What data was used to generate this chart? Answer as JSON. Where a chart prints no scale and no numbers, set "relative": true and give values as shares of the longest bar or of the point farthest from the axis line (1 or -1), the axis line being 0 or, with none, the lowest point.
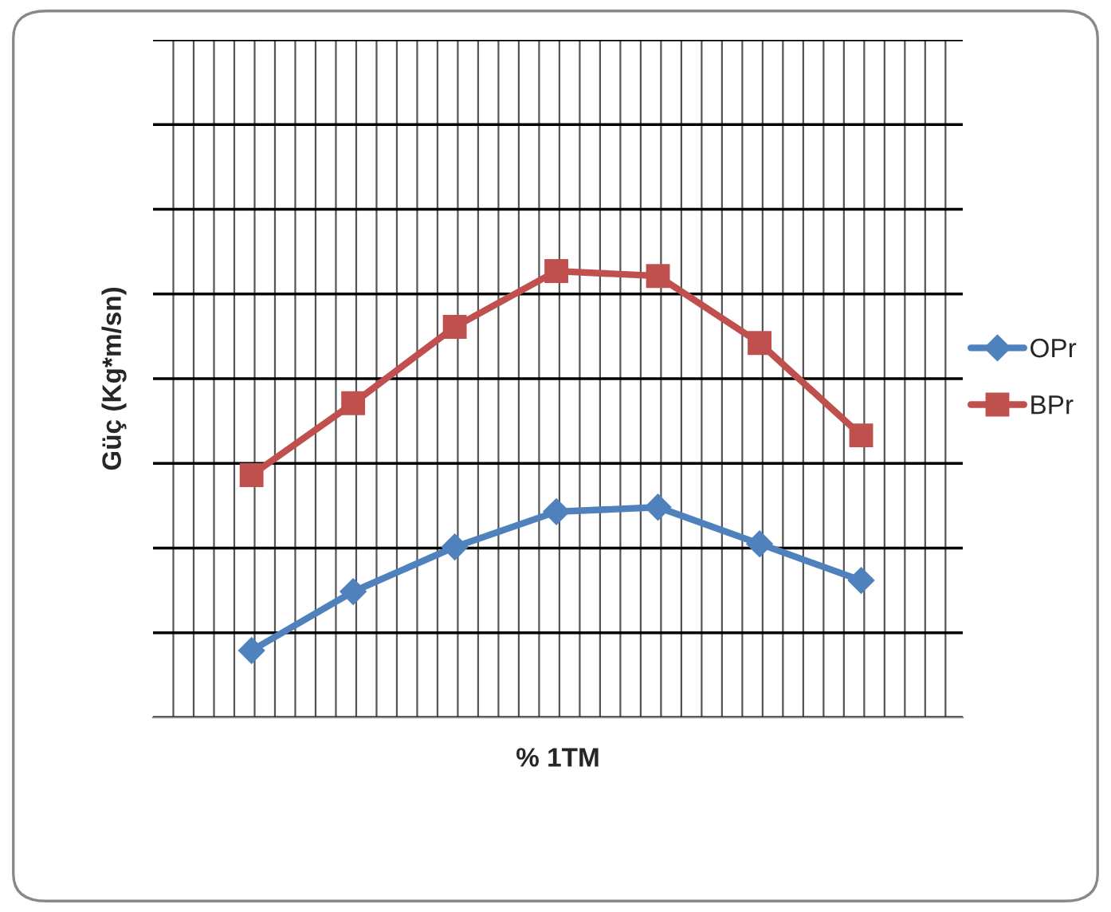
{
  "chart_data": {
    "type": "line",
    "xlabel": "% 1TM",
    "ylabel": "Güç (Kg*m/sn)",
    "relative": true,
    "categories": [
      null,
      null,
      null,
      null,
      null,
      null,
      null
    ],
    "series": [
      {
        "name": "OPr",
        "color": "#4f81bd",
        "marker": "diamond",
        "values": [
          0.15,
          0.282,
          0.382,
          0.461,
          0.471,
          0.389,
          0.307
        ]
      },
      {
        "name": "BPr",
        "color": "#c0504d",
        "marker": "square",
        "values": [
          0.543,
          0.704,
          0.875,
          1.0,
          0.989,
          0.839,
          0.632
        ]
      }
    ],
    "grid": true,
    "legend": "right",
    "line_style": "solid"
  }
}
